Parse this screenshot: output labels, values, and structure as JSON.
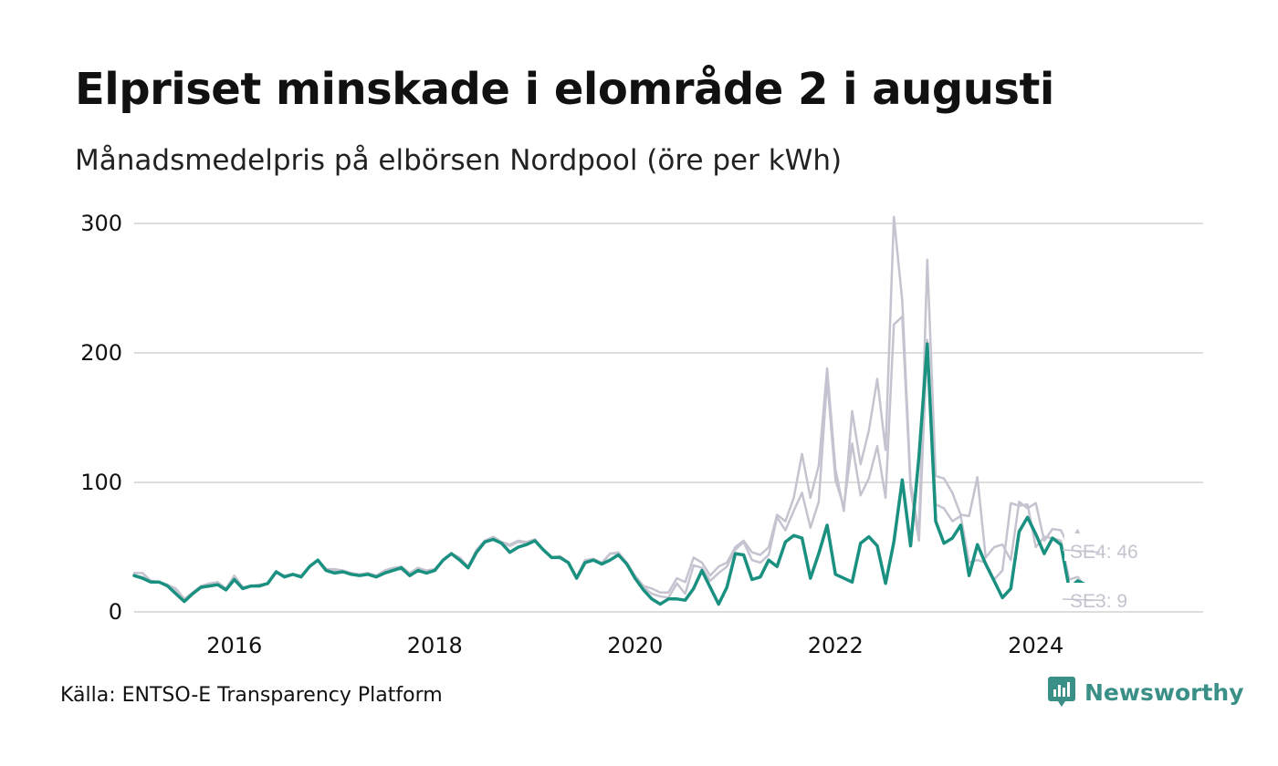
{
  "header": {
    "title": "Elpriset minskade i elområde 2 i augusti",
    "subtitle": "Månadsmedelpris på elbörsen Nordpool (öre per kWh)"
  },
  "footer": {
    "source": "Källa: ENTSO-E Transparency Platform",
    "brand": "Newsworthy"
  },
  "colors": {
    "highlight": "#1a9080",
    "context": "#c4c3cf",
    "grid": "#dddddd",
    "brand": "#3a8f86"
  },
  "chart_data": {
    "type": "line",
    "xlim": [
      2015.0,
      2025.67
    ],
    "ylim": [
      0,
      300
    ],
    "yticks": [
      0,
      100,
      200,
      300
    ],
    "xticks": [
      2016,
      2018,
      2020,
      2022,
      2024
    ],
    "grid": true,
    "start": "2015-01",
    "end_labels": [
      "SE4: 46",
      "SE3: 9"
    ],
    "series": [
      {
        "id": "SE4",
        "role": "context",
        "values": [
          30,
          30,
          24,
          23,
          21,
          18,
          10,
          15,
          20,
          22,
          23,
          18,
          28,
          19,
          20,
          21,
          22,
          30,
          28,
          29,
          28,
          35,
          40,
          33,
          33,
          32,
          30,
          29,
          30,
          28,
          32,
          34,
          35,
          30,
          34,
          32,
          33,
          40,
          45,
          42,
          35,
          48,
          55,
          58,
          54,
          52,
          55,
          54,
          56,
          48,
          42,
          43,
          38,
          27,
          40,
          41,
          38,
          45,
          46,
          38,
          28,
          20,
          18,
          15,
          15,
          26,
          23,
          42,
          38,
          28,
          35,
          38,
          50,
          55,
          46,
          44,
          50,
          75,
          70,
          88,
          122,
          88,
          113,
          188,
          110,
          78,
          155,
          114,
          140,
          180,
          125,
          305,
          240,
          100,
          60,
          272,
          105,
          103,
          92,
          75,
          74,
          104,
          42,
          50,
          52,
          40,
          85,
          80,
          84,
          55,
          64,
          63,
          50,
          63,
          44,
          46
        ]
      },
      {
        "id": "SE3",
        "role": "context",
        "values": [
          28,
          27,
          24,
          23,
          21,
          16,
          9,
          14,
          19,
          21,
          22,
          17,
          27,
          18,
          20,
          21,
          22,
          30,
          28,
          29,
          28,
          35,
          40,
          33,
          32,
          32,
          29,
          29,
          30,
          27,
          31,
          33,
          33,
          28,
          32,
          30,
          32,
          40,
          45,
          41,
          35,
          47,
          55,
          57,
          53,
          51,
          54,
          53,
          56,
          48,
          42,
          43,
          38,
          26,
          39,
          40,
          37,
          45,
          45,
          38,
          27,
          19,
          14,
          12,
          11,
          22,
          14,
          36,
          34,
          24,
          30,
          35,
          48,
          54,
          40,
          38,
          44,
          73,
          63,
          78,
          92,
          65,
          85,
          180,
          102,
          81,
          130,
          90,
          103,
          128,
          88,
          222,
          228,
          95,
          55,
          210,
          83,
          80,
          70,
          74,
          38,
          40,
          38,
          25,
          32,
          84,
          82,
          83,
          50,
          58,
          57,
          55,
          25,
          27,
          19,
          9
        ]
      },
      {
        "id": "SE2",
        "role": "highlight",
        "values": [
          28,
          26,
          23,
          23,
          20,
          14,
          8,
          14,
          19,
          20,
          21,
          17,
          25,
          18,
          20,
          20,
          22,
          31,
          27,
          29,
          27,
          35,
          40,
          32,
          30,
          31,
          29,
          28,
          29,
          27,
          30,
          32,
          34,
          28,
          32,
          30,
          32,
          40,
          45,
          40,
          34,
          46,
          54,
          56,
          53,
          46,
          50,
          52,
          55,
          48,
          42,
          42,
          38,
          26,
          38,
          40,
          37,
          40,
          44,
          37,
          26,
          17,
          10,
          6,
          10,
          10,
          9,
          18,
          32,
          19,
          6,
          19,
          45,
          44,
          25,
          27,
          40,
          35,
          54,
          59,
          57,
          26,
          45,
          67,
          29,
          26,
          23,
          53,
          58,
          51,
          22,
          54,
          102,
          51,
          120,
          207,
          70,
          53,
          57,
          67,
          28,
          52,
          37,
          24,
          11,
          18,
          62,
          73,
          60,
          45,
          57,
          52,
          18,
          24,
          21,
          9
        ]
      }
    ]
  }
}
